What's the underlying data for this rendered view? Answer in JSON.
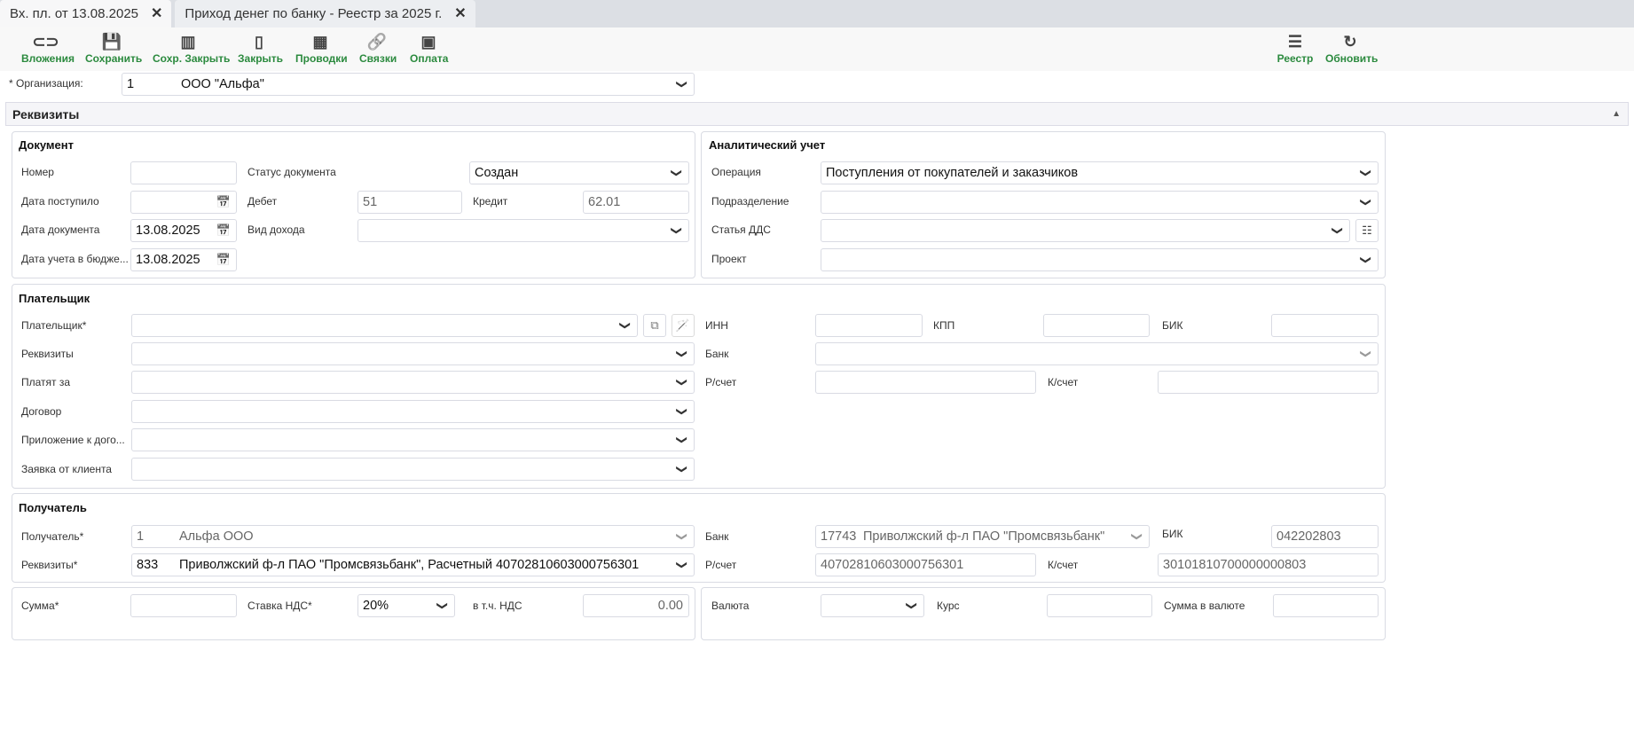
{
  "tabs": [
    {
      "label": "Вх. пл. от 13.08.2025",
      "active": true
    },
    {
      "label": "Приход денег по банку - Реестр за 2025 г.",
      "active": false
    }
  ],
  "toolbar": {
    "left": [
      {
        "label": "Вложения",
        "icon": "paperclip-icon"
      },
      {
        "label": "Сохранить",
        "icon": "save-icon"
      },
      {
        "label": "Сохр. Закрыть",
        "icon": "save-close-icon"
      },
      {
        "label": "Закрыть",
        "icon": "door-close-icon"
      },
      {
        "label": "Проводки",
        "icon": "calculator-icon"
      },
      {
        "label": "Связки",
        "icon": "link-icon"
      },
      {
        "label": "Оплата",
        "icon": "money-icon"
      }
    ],
    "right": [
      {
        "label": "Реестр",
        "icon": "registry-icon"
      },
      {
        "label": "Обновить",
        "icon": "refresh-icon"
      }
    ]
  },
  "accent": "#2b8a3e",
  "org": {
    "label": "* Организация:",
    "code": "1",
    "name": "ООО \"Альфа\""
  },
  "section": {
    "title": "Реквизиты"
  },
  "document": {
    "title": "Документ",
    "number_label": "Номер",
    "number": "",
    "received_label": "Дата поступило",
    "received": "",
    "date_label": "Дата документа",
    "date": "13.08.2025",
    "budget_date_label": "Дата учета в бюдже...",
    "budget_date": "13.08.2025",
    "status_label": "Статус документа",
    "status": "Создан",
    "debit_label": "Дебет",
    "debit": "51",
    "credit_label": "Кредит",
    "credit": "62.01",
    "income_type_label": "Вид дохода",
    "income_type": ""
  },
  "analytics": {
    "title": "Аналитический учет",
    "operation_label": "Операция",
    "operation": "Поступления от покупателей и заказчиков",
    "division_label": "Подразделение",
    "division": "",
    "dds_label": "Статья ДДС",
    "dds": "",
    "project_label": "Проект",
    "project": ""
  },
  "payer": {
    "title": "Плательщик",
    "payer_label": "Плательщик*",
    "details_label": "Реквизиты",
    "pay_for_label": "Платят за",
    "contract_label": "Договор",
    "appendix_label": "Приложение к дого...",
    "request_label": "Заявка от клиента",
    "inn_label": "ИНН",
    "kpp_label": "КПП",
    "bik_label": "БИК",
    "bank_label": "Банк",
    "account_label": "Р/счет",
    "corr_label": "К/счет"
  },
  "recipient": {
    "title": "Получатель",
    "recipient_label": "Получатель*",
    "recipient_code": "1",
    "recipient_name": "Альфа ООО",
    "details_label": "Реквизиты*",
    "details_code": "833",
    "details": "Приволжский ф-л ПАО \"Промсвязьбанк\", Расчетный 40702810603000756301",
    "bank_label": "Банк",
    "bank_code": "17743",
    "bank_name": "Приволжский ф-л ПАО \"Промсвязьбанк\"",
    "bik_label": "БИК",
    "bik": "042202803",
    "account_label": "Р/счет",
    "account": "40702810603000756301",
    "corr_label": "К/счет",
    "corr": "30101810700000000803"
  },
  "sum": {
    "sum_label": "Сумма*",
    "sum": "",
    "vat_rate_label": "Ставка НДС*",
    "vat_rate": "20%",
    "vat_label": "в т.ч. НДС",
    "vat": "0.00",
    "currency_label": "Валюта",
    "currency": "",
    "rate_label": "Курс",
    "rate": "",
    "cur_sum_label": "Сумма в валюте",
    "cur_sum": ""
  }
}
